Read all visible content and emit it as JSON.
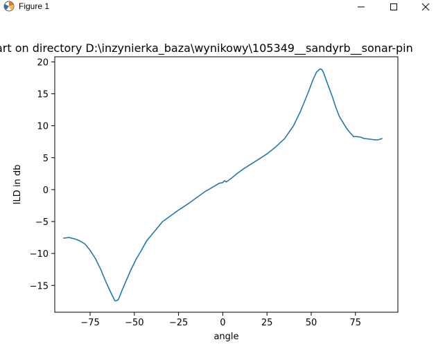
{
  "window": {
    "title": "Figure 1",
    "icons": [
      "matplotlib-icon",
      "minimize-icon",
      "maximize-icon",
      "close-icon"
    ]
  },
  "chart_data": {
    "type": "line",
    "title": "art on directory D:\\inzynierka_baza\\wynikowy\\105349__sandyrb__sonar-pin",
    "xlabel": "angle",
    "ylabel": "ILD in db",
    "xlim": [
      -95,
      99
    ],
    "ylim": [
      -19.2,
      20.8
    ],
    "xticks": [
      -75,
      -50,
      -25,
      0,
      25,
      50,
      75
    ],
    "yticks": [
      -15,
      -10,
      -5,
      0,
      5,
      10,
      15,
      20
    ],
    "xtick_labels": [
      "−75",
      "−50",
      "−25",
      "0",
      "25",
      "50",
      "75"
    ],
    "ytick_labels": [
      "−15",
      "−10",
      "−5",
      "0",
      "5",
      "10",
      "15",
      "20"
    ],
    "grid": false,
    "line_color": "#1f77b4",
    "series": [
      {
        "x": [
          -90,
          -87,
          -84,
          -81,
          -78,
          -75,
          -72,
          -69,
          -66,
          -63,
          -61,
          -60,
          -59,
          -58,
          -57,
          -55,
          -52,
          -49,
          -46,
          -43,
          -40,
          -37,
          -34,
          -30,
          -25,
          -20,
          -15,
          -10,
          -5,
          -2,
          0,
          1,
          2,
          3,
          4,
          5,
          8,
          12,
          16,
          20,
          25,
          30,
          35,
          40,
          44,
          48,
          51,
          53,
          55,
          56,
          57,
          58,
          60,
          62,
          64,
          66,
          68,
          70,
          72,
          74,
          76,
          78,
          80,
          83,
          86,
          88,
          90
        ],
        "y": [
          -7.6,
          -7.5,
          -7.7,
          -8.0,
          -8.5,
          -9.5,
          -10.8,
          -12.5,
          -14.5,
          -16.3,
          -17.4,
          -17.4,
          -17.2,
          -16.5,
          -15.8,
          -14.5,
          -12.6,
          -10.9,
          -9.5,
          -8.0,
          -7.0,
          -6.0,
          -5.0,
          -4.2,
          -3.2,
          -2.3,
          -1.3,
          -0.3,
          0.5,
          1.0,
          1.1,
          1.4,
          1.2,
          1.4,
          1.6,
          1.8,
          2.5,
          3.3,
          4.0,
          4.7,
          5.6,
          6.7,
          8.0,
          10.0,
          12.3,
          15.0,
          17.2,
          18.4,
          18.9,
          18.8,
          18.3,
          17.5,
          16.0,
          14.5,
          12.8,
          11.4,
          10.5,
          9.6,
          8.9,
          8.3,
          8.3,
          8.2,
          8.0,
          7.9,
          7.8,
          7.8,
          8.0
        ]
      }
    ]
  }
}
